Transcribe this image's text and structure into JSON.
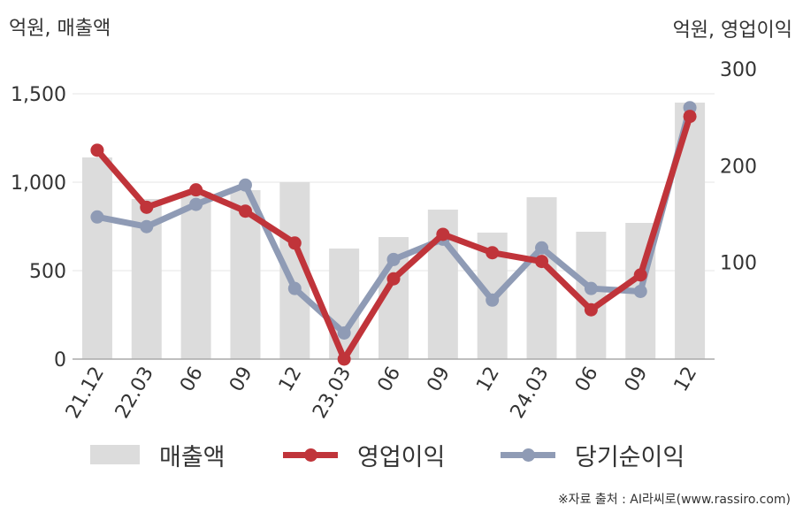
{
  "units": {
    "left": "억원, 매출액",
    "right": "억원, 영업이익"
  },
  "colors": {
    "revenue": "#dcdcdc",
    "operating_profit": "#c0343a",
    "net_profit": "#8f9bb5",
    "grid": "#e6e6e6",
    "axis": "#aaaaaa",
    "text": "#333333"
  },
  "chart_data": {
    "type": "bar",
    "categories": [
      "21.12",
      "22.03",
      "06",
      "09",
      "12",
      "23.03",
      "06",
      "09",
      "12",
      "24.03",
      "06",
      "09",
      "12"
    ],
    "left_axis": {
      "ylim": [
        0,
        1500
      ],
      "ticks": [
        "0",
        "500",
        "1,000",
        "1,500"
      ],
      "tick_values": [
        0,
        500,
        1000,
        1500
      ]
    },
    "right_axis": {
      "ylim": [
        0,
        300
      ],
      "ticks": [
        "100",
        "200",
        "300"
      ],
      "tick_values": [
        100,
        200,
        300
      ]
    },
    "series": [
      {
        "name": "매출액",
        "type": "bar",
        "axis": "left",
        "values": [
          1140,
          905,
          945,
          955,
          1000,
          625,
          690,
          845,
          715,
          915,
          720,
          770,
          1450
        ]
      },
      {
        "name": "영업이익",
        "type": "line",
        "axis": "right",
        "values": [
          216,
          157,
          175,
          153,
          120,
          0,
          83,
          129,
          110,
          101,
          51,
          87,
          251
        ]
      },
      {
        "name": "당기순이익",
        "type": "line",
        "axis": "right",
        "values": [
          147,
          137,
          160,
          180,
          73,
          27,
          103,
          124,
          61,
          115,
          73,
          70,
          260
        ]
      }
    ],
    "grid": true,
    "legend": "bottom"
  },
  "legend": {
    "revenue": "매출액",
    "operating_profit": "영업이익",
    "net_profit": "당기순이익"
  },
  "source": "※자료 출처 : AI라씨로(www.rassiro.com)"
}
